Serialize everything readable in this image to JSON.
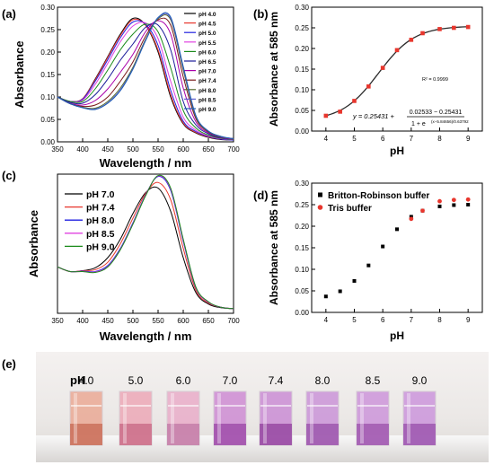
{
  "panel_labels": {
    "a": "(a)",
    "b": "(b)",
    "c": "(c)",
    "d": "(d)",
    "e": "(e)"
  },
  "chart_data": [
    {
      "panel": "(a)",
      "type": "line",
      "xlabel": "Wavelength / nm",
      "ylabel": "Absorbance",
      "xlim": [
        350,
        700
      ],
      "ylim": [
        0.0,
        0.3
      ],
      "xticks": [
        350,
        400,
        450,
        500,
        550,
        600,
        650,
        700
      ],
      "yticks": [
        0.0,
        0.05,
        0.1,
        0.15,
        0.2,
        0.25,
        0.3
      ],
      "x": [
        350,
        375,
        400,
        425,
        450,
        475,
        500,
        525,
        550,
        575,
        600,
        625,
        650,
        675,
        700
      ],
      "legend_position": "right",
      "series": [
        {
          "name": "pH 4.0",
          "color": "#000000",
          "values": [
            0.1,
            0.09,
            0.096,
            0.14,
            0.19,
            0.24,
            0.275,
            0.26,
            0.2,
            0.1,
            0.04,
            0.02,
            0.01,
            0.005,
            0.004
          ]
        },
        {
          "name": "pH 4.5",
          "color": "#e8362d",
          "values": [
            0.1,
            0.09,
            0.096,
            0.138,
            0.188,
            0.237,
            0.272,
            0.26,
            0.205,
            0.105,
            0.042,
            0.021,
            0.011,
            0.006,
            0.004
          ]
        },
        {
          "name": "pH 5.0",
          "color": "#2020e0",
          "values": [
            0.1,
            0.09,
            0.095,
            0.135,
            0.183,
            0.232,
            0.267,
            0.262,
            0.215,
            0.115,
            0.046,
            0.023,
            0.012,
            0.006,
            0.004
          ]
        },
        {
          "name": "pH 5.5",
          "color": "#e040e0",
          "values": [
            0.1,
            0.09,
            0.093,
            0.128,
            0.175,
            0.223,
            0.258,
            0.265,
            0.23,
            0.135,
            0.055,
            0.026,
            0.013,
            0.007,
            0.005
          ]
        },
        {
          "name": "pH 6.0",
          "color": "#1a8a1a",
          "values": [
            0.1,
            0.09,
            0.09,
            0.118,
            0.16,
            0.205,
            0.24,
            0.262,
            0.245,
            0.165,
            0.07,
            0.031,
            0.015,
            0.008,
            0.005
          ]
        },
        {
          "name": "pH 6.5",
          "color": "#1a1a9a",
          "values": [
            0.1,
            0.088,
            0.086,
            0.105,
            0.14,
            0.182,
            0.218,
            0.255,
            0.26,
            0.205,
            0.09,
            0.038,
            0.018,
            0.009,
            0.006
          ]
        },
        {
          "name": "pH 7.0",
          "color": "#aa00aa",
          "values": [
            0.1,
            0.086,
            0.082,
            0.092,
            0.118,
            0.155,
            0.195,
            0.245,
            0.27,
            0.24,
            0.12,
            0.045,
            0.02,
            0.01,
            0.006
          ]
        },
        {
          "name": "pH 7.4",
          "color": "#7a1a1a",
          "values": [
            0.1,
            0.085,
            0.079,
            0.082,
            0.1,
            0.135,
            0.178,
            0.235,
            0.272,
            0.26,
            0.145,
            0.052,
            0.022,
            0.011,
            0.007
          ]
        },
        {
          "name": "pH 8.0",
          "color": "#556b2f",
          "values": [
            0.1,
            0.085,
            0.077,
            0.075,
            0.09,
            0.12,
            0.166,
            0.228,
            0.274,
            0.272,
            0.16,
            0.056,
            0.023,
            0.011,
            0.007
          ]
        },
        {
          "name": "pH 8.5",
          "color": "#5f5fd0",
          "values": [
            0.1,
            0.085,
            0.076,
            0.073,
            0.087,
            0.116,
            0.163,
            0.226,
            0.276,
            0.275,
            0.165,
            0.058,
            0.024,
            0.012,
            0.007
          ]
        },
        {
          "name": "pH 9.0",
          "color": "#1f5fb4",
          "values": [
            0.1,
            0.085,
            0.076,
            0.072,
            0.086,
            0.114,
            0.162,
            0.225,
            0.277,
            0.278,
            0.168,
            0.059,
            0.024,
            0.012,
            0.007
          ]
        }
      ]
    },
    {
      "panel": "(b)",
      "type": "scatter",
      "xlabel": "pH",
      "ylabel": "Absorbance at 585 nm",
      "xlim": [
        3.5,
        9.5
      ],
      "ylim": [
        0.0,
        0.3
      ],
      "xticks": [
        4,
        5,
        6,
        7,
        8,
        9
      ],
      "yticks": [
        0.0,
        0.05,
        0.1,
        0.15,
        0.2,
        0.25,
        0.3
      ],
      "x": [
        4.0,
        4.5,
        5.0,
        5.5,
        6.0,
        6.5,
        7.0,
        7.4,
        8.0,
        8.5,
        9.0
      ],
      "values": [
        0.037,
        0.047,
        0.073,
        0.108,
        0.153,
        0.196,
        0.221,
        0.237,
        0.247,
        0.25,
        0.252
      ],
      "fit": {
        "color": "#2a2a2a",
        "equation": "y = 0.25431 + (0.02533 − 0.25431) / (1 + e^((x−5.84656)/0.63792))",
        "r2_label": "R² = 0.9999"
      },
      "formula_parts": {
        "lead": "y = 0.25431 +",
        "numerator": "0.02533 − 0.25431",
        "denominator": "1 + e",
        "exponent": "(x−5.84656)/0.63792"
      },
      "marker_color": "#e8362d"
    },
    {
      "panel": "(c)",
      "type": "line",
      "xlabel": "Wavelength / nm",
      "ylabel": "Absorbance",
      "xlim": [
        350,
        700
      ],
      "ylim": [
        0.0,
        0.3
      ],
      "xticks": [
        350,
        400,
        450,
        500,
        550,
        600,
        650,
        700
      ],
      "x": [
        350,
        375,
        400,
        425,
        450,
        475,
        500,
        525,
        550,
        575,
        600,
        625,
        650,
        675,
        700
      ],
      "legend_position": "top-left",
      "series": [
        {
          "name": "pH 7.0",
          "color": "#000000",
          "values": [
            0.1,
            0.09,
            0.092,
            0.098,
            0.12,
            0.16,
            0.215,
            0.26,
            0.27,
            0.22,
            0.12,
            0.045,
            0.02,
            0.012,
            0.01
          ]
        },
        {
          "name": "pH 7.4",
          "color": "#e8362d",
          "values": [
            0.1,
            0.09,
            0.092,
            0.094,
            0.11,
            0.15,
            0.205,
            0.258,
            0.282,
            0.245,
            0.14,
            0.05,
            0.022,
            0.013,
            0.01
          ]
        },
        {
          "name": "pH 8.0",
          "color": "#2020e0",
          "values": [
            0.1,
            0.09,
            0.091,
            0.09,
            0.103,
            0.14,
            0.195,
            0.255,
            0.295,
            0.265,
            0.155,
            0.055,
            0.024,
            0.013,
            0.01
          ]
        },
        {
          "name": "pH 8.5",
          "color": "#e040e0",
          "values": [
            0.1,
            0.09,
            0.09,
            0.089,
            0.101,
            0.138,
            0.193,
            0.254,
            0.296,
            0.268,
            0.158,
            0.056,
            0.024,
            0.013,
            0.01
          ]
        },
        {
          "name": "pH 9.0",
          "color": "#1a8a1a",
          "values": [
            0.1,
            0.09,
            0.09,
            0.088,
            0.1,
            0.137,
            0.192,
            0.253,
            0.297,
            0.27,
            0.16,
            0.057,
            0.025,
            0.013,
            0.01
          ]
        }
      ]
    },
    {
      "panel": "(d)",
      "type": "scatter",
      "xlabel": "pH",
      "ylabel": "Absorbance at 585 nm",
      "xlim": [
        3.5,
        9.5
      ],
      "ylim": [
        0.0,
        0.3
      ],
      "xticks": [
        4,
        5,
        6,
        7,
        8,
        9
      ],
      "yticks": [
        0.0,
        0.05,
        0.1,
        0.15,
        0.2,
        0.25,
        0.3
      ],
      "legend_position": "top-left",
      "series": [
        {
          "name": "Britton-Robinson buffer",
          "color": "#000000",
          "marker": "square",
          "x": [
            4.0,
            4.5,
            5.0,
            5.5,
            6.0,
            6.5,
            7.0,
            7.4,
            8.0,
            8.5,
            9.0
          ],
          "values": [
            0.037,
            0.049,
            0.073,
            0.109,
            0.153,
            0.193,
            0.222,
            0.236,
            0.246,
            0.249,
            0.25
          ]
        },
        {
          "name": "Tris buffer",
          "color": "#e8362d",
          "marker": "circle",
          "x": [
            7.0,
            7.4,
            8.0,
            8.5,
            9.0
          ],
          "values": [
            0.217,
            0.236,
            0.258,
            0.261,
            0.262
          ]
        }
      ]
    }
  ],
  "photo": {
    "label": "pH",
    "samples": [
      {
        "ph": "4.0",
        "color": "#e9a08a",
        "bottom": "#c86b56"
      },
      {
        "ph": "5.0",
        "color": "#ec9fb0",
        "bottom": "#c96a86"
      },
      {
        "ph": "6.0",
        "color": "#e8a4c4",
        "bottom": "#c27aa6"
      },
      {
        "ph": "7.0",
        "color": "#c97fd0",
        "bottom": "#9c4aa8"
      },
      {
        "ph": "7.4",
        "color": "#c680d2",
        "bottom": "#94449f"
      },
      {
        "ph": "8.0",
        "color": "#c688d6",
        "bottom": "#9a52aa"
      },
      {
        "ph": "8.5",
        "color": "#c88ad8",
        "bottom": "#9d55ad"
      },
      {
        "ph": "9.0",
        "color": "#c78ad9",
        "bottom": "#9a52ad"
      }
    ]
  }
}
